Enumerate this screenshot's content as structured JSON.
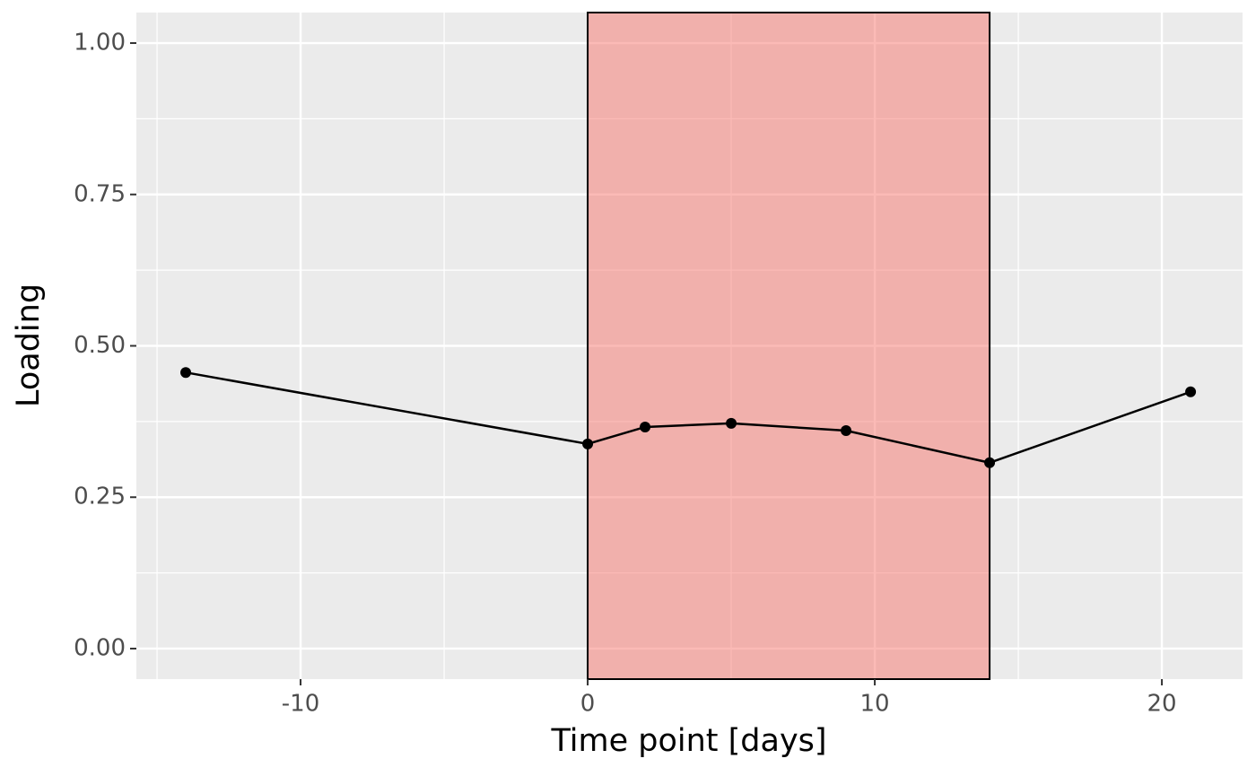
{
  "chart_data": {
    "type": "line",
    "x_label": "Time point [days]",
    "y_label": "Loading",
    "x": [
      -14,
      0,
      2,
      5,
      9,
      14,
      21
    ],
    "series": [
      {
        "color": "#000000",
        "values": [
          0.456,
          0.338,
          0.366,
          0.372,
          0.36,
          0.307,
          0.424
        ]
      }
    ],
    "highlight": {
      "xmin": 0,
      "xmax": 14,
      "color": "#F8766D"
    },
    "xlim": [
      -15.72,
      22.81
    ],
    "ylim": [
      -0.0504,
      1.0504
    ],
    "xticks": [
      -10,
      0,
      10,
      20
    ],
    "yticks": [
      {
        "value": 0,
        "label": "0.00"
      },
      {
        "value": 0.25,
        "label": "0.25"
      },
      {
        "value": 0.5,
        "label": "0.50"
      },
      {
        "value": 0.75,
        "label": "0.75"
      },
      {
        "value": 1,
        "label": "1.00"
      }
    ],
    "grid": true,
    "minor_grid": true
  }
}
